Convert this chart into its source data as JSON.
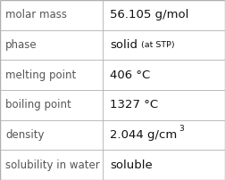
{
  "rows": [
    {
      "label": "molar mass",
      "value": "56.105 g/mol",
      "special": null
    },
    {
      "label": "phase",
      "value": "solid",
      "special": "phase"
    },
    {
      "label": "melting point",
      "value": "406 °C",
      "special": null
    },
    {
      "label": "boiling point",
      "value": "1327 °C",
      "special": null
    },
    {
      "label": "density",
      "value": "2.044 g/cm",
      "special": "density"
    },
    {
      "label": "solubility in water",
      "value": "soluble",
      "special": null
    }
  ],
  "col_split": 0.455,
  "bg_color": "#ffffff",
  "border_color": "#b0b0b0",
  "label_color": "#555555",
  "value_color": "#111111",
  "label_fontsize": 8.5,
  "value_fontsize": 9.5,
  "suffix_fontsize": 6.8,
  "sup_fontsize": 6.5,
  "suffix_text": "(at STP)",
  "sup_text": "3"
}
